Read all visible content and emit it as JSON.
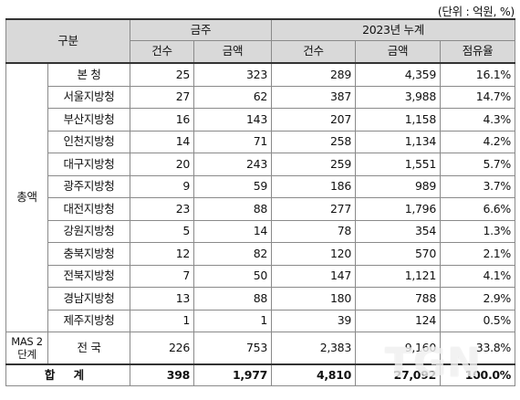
{
  "unit_note": "(단위 : 억원, %)",
  "header": {
    "group": "구분",
    "month": "금주",
    "ytd": "2023년 누계",
    "cols": {
      "count": "건수",
      "amount": "금액",
      "share": "점유율"
    }
  },
  "category_total": "총액",
  "rows": [
    {
      "name": "본    청",
      "w_count": "25",
      "w_amount": "323",
      "y_count": "289",
      "y_amount": "4,359",
      "share": "16.1%"
    },
    {
      "name": "서울지방청",
      "w_count": "27",
      "w_amount": "62",
      "y_count": "387",
      "y_amount": "3,988",
      "share": "14.7%"
    },
    {
      "name": "부산지방청",
      "w_count": "16",
      "w_amount": "143",
      "y_count": "207",
      "y_amount": "1,158",
      "share": "4.3%"
    },
    {
      "name": "인천지방청",
      "w_count": "14",
      "w_amount": "71",
      "y_count": "258",
      "y_amount": "1,134",
      "share": "4.2%"
    },
    {
      "name": "대구지방청",
      "w_count": "20",
      "w_amount": "243",
      "y_count": "259",
      "y_amount": "1,551",
      "share": "5.7%"
    },
    {
      "name": "광주지방청",
      "w_count": "9",
      "w_amount": "59",
      "y_count": "186",
      "y_amount": "989",
      "share": "3.7%"
    },
    {
      "name": "대전지방청",
      "w_count": "23",
      "w_amount": "88",
      "y_count": "277",
      "y_amount": "1,796",
      "share": "6.6%"
    },
    {
      "name": "강원지방청",
      "w_count": "5",
      "w_amount": "14",
      "y_count": "78",
      "y_amount": "354",
      "share": "1.3%"
    },
    {
      "name": "충북지방청",
      "w_count": "12",
      "w_amount": "82",
      "y_count": "120",
      "y_amount": "570",
      "share": "2.1%"
    },
    {
      "name": "전북지방청",
      "w_count": "7",
      "w_amount": "50",
      "y_count": "147",
      "y_amount": "1,121",
      "share": "4.1%"
    },
    {
      "name": "경남지방청",
      "w_count": "13",
      "w_amount": "88",
      "y_count": "180",
      "y_amount": "788",
      "share": "2.9%"
    },
    {
      "name": "제주지방청",
      "w_count": "1",
      "w_amount": "1",
      "y_count": "39",
      "y_amount": "124",
      "share": "0.5%"
    }
  ],
  "mas": {
    "category": "MAS 2단계",
    "name": "전    국",
    "w_count": "226",
    "w_amount": "753",
    "y_count": "2,383",
    "y_amount": "9,160",
    "share": "33.8%"
  },
  "total": {
    "label": "합  계",
    "w_count": "398",
    "w_amount": "1,977",
    "y_count": "4,810",
    "y_amount": "27,092",
    "share": "100.0%"
  },
  "watermark": "TGN"
}
